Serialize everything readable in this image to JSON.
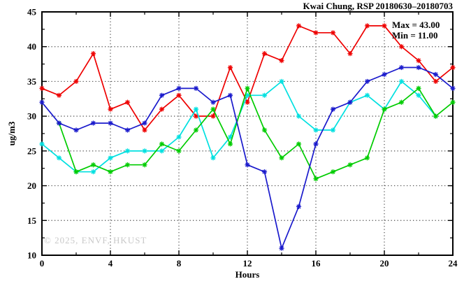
{
  "chart_data": {
    "type": "line",
    "title": "Kwai Chung, RSP 20180630–20180703",
    "xlabel": "Hours",
    "ylabel": "ug/m3",
    "xlim": [
      0,
      24
    ],
    "ylim": [
      10,
      45
    ],
    "x_major_ticks": [
      0,
      4,
      8,
      12,
      16,
      20,
      24
    ],
    "x_minor_step": 2,
    "y_major_ticks": [
      10,
      15,
      20,
      25,
      30,
      35,
      40,
      45
    ],
    "y_minor_step": 2.5,
    "grid": {
      "x_values": [
        4,
        8,
        12,
        16,
        20
      ],
      "y_values": [
        15,
        20,
        25,
        30,
        35,
        40
      ]
    },
    "x": [
      0,
      1,
      2,
      3,
      4,
      5,
      6,
      7,
      8,
      9,
      10,
      11,
      12,
      13,
      14,
      15,
      16,
      17,
      18,
      19,
      20,
      21,
      22,
      23,
      24
    ],
    "series": [
      {
        "name": "day-red",
        "color": "#ee0000",
        "values": [
          34,
          33,
          35,
          39,
          31,
          32,
          28,
          31,
          33,
          30,
          30,
          37,
          32,
          39,
          38,
          43,
          42,
          42,
          39,
          43,
          43,
          40,
          38,
          35,
          37
        ]
      },
      {
        "name": "day-cyan",
        "color": "#00e0e0",
        "values": [
          26,
          24,
          22,
          22,
          24,
          25,
          25,
          25,
          27,
          31,
          24,
          27,
          33,
          33,
          35,
          30,
          28,
          28,
          32,
          33,
          31,
          35,
          33,
          30,
          null
        ]
      },
      {
        "name": "day-green",
        "color": "#00cc00",
        "values": [
          null,
          29,
          22,
          23,
          22,
          23,
          23,
          26,
          25,
          28,
          31,
          26,
          34,
          28,
          24,
          26,
          21,
          22,
          23,
          24,
          31,
          32,
          34,
          30,
          32
        ]
      },
      {
        "name": "day-blue",
        "color": "#1a1acc",
        "values": [
          32,
          29,
          28,
          29,
          29,
          28,
          29,
          33,
          34,
          34,
          32,
          33,
          23,
          22,
          11,
          17,
          26,
          31,
          32,
          35,
          36,
          37,
          37,
          36,
          34
        ]
      }
    ],
    "annotations": {
      "max_label": "Max = 43.00",
      "min_label": "Min = 11.00"
    },
    "watermark": "© 2025, ENVF, HKUST"
  }
}
